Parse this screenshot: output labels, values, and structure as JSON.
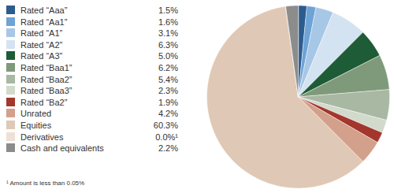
{
  "chart_data": {
    "type": "pie",
    "categories": [
      "Rated “Aaa”",
      "Rated “Aa1”",
      "Rated “A1”",
      "Rated “A2”",
      "Rated “A3”",
      "Rated “Baa1”",
      "Rated “Baa2”",
      "Rated “Baa3”",
      "Rated “Ba2”",
      "Unrated",
      "Equities",
      "Derivatives",
      "Cash and equivalents"
    ],
    "values": [
      1.5,
      1.6,
      3.1,
      6.3,
      5.0,
      6.2,
      5.4,
      2.3,
      1.9,
      4.2,
      60.3,
      0.0,
      2.2
    ],
    "value_labels": [
      "1.5%",
      "1.6%",
      "3.1%",
      "6.3%",
      "5.0%",
      "6.2%",
      "5.4%",
      "2.3%",
      "1.9%",
      "4.2%",
      "60.3%",
      "0.0%¹",
      "2.2%"
    ],
    "colors": [
      "#2c5b8e",
      "#6ea3d6",
      "#a7c7e6",
      "#d4e3f1",
      "#1e5b37",
      "#7e9a7a",
      "#a8b8a2",
      "#d1dacb",
      "#a3372d",
      "#d3a08b",
      "#dfc8b5",
      "#efe0d6",
      "#8c8c8c"
    ],
    "legend": "left",
    "annotations": [
      "¹ Amount is less than 0.05%"
    ]
  }
}
